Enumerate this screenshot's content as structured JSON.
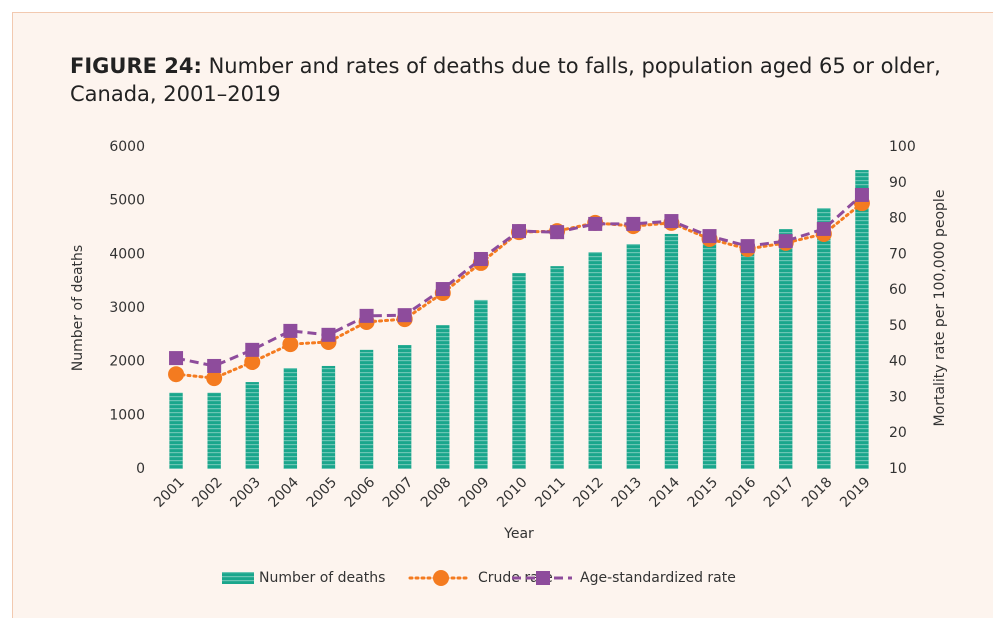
{
  "chart_data": {
    "type": "bar",
    "title_label": "FIGURE 24:",
    "title": "Number and rates of deaths due to falls, population aged 65 or older, Canada, 2001–2019",
    "x_label": "Year",
    "y_label": "Number of deaths",
    "y2_label": "Mortality rate per 100,000 people",
    "categories": [
      "2001",
      "2002",
      "2003",
      "2004",
      "2005",
      "2006",
      "2007",
      "2008",
      "2009",
      "2010",
      "2011",
      "2012",
      "2013",
      "2014",
      "2015",
      "2016",
      "2017",
      "2018",
      "2019"
    ],
    "series": [
      {
        "name": "Number of deaths",
        "type": "bar",
        "color": "#1aa68c",
        "values": [
          1420,
          1420,
          1620,
          1880,
          1920,
          2220,
          2310,
          2680,
          3150,
          3650,
          3780,
          4040,
          4190,
          4380,
          4200,
          4080,
          4470,
          4860,
          5570
        ]
      },
      {
        "name": "Crude rate",
        "type": "line",
        "axis": "y2",
        "color": "#f47b20",
        "marker": "circle",
        "dash": "dotted",
        "values": [
          36.5,
          35.4,
          39.9,
          44.9,
          45.5,
          51.1,
          51.9,
          59.2,
          67.6,
          76.2,
          76.5,
          78.8,
          77.9,
          78.8,
          74.3,
          71.5,
          73.2,
          75.7,
          84.3
        ]
      },
      {
        "name": "Age-standardized rate",
        "type": "line",
        "axis": "y2",
        "color": "#8e4c9c",
        "marker": "square",
        "dash": "dashed",
        "values": [
          41.0,
          38.8,
          43.3,
          48.6,
          47.5,
          52.8,
          53.0,
          60.3,
          68.7,
          76.5,
          76.2,
          78.5,
          78.5,
          79.3,
          75.1,
          72.3,
          73.7,
          77.1,
          86.6
        ]
      }
    ],
    "ylim": [
      0,
      6000
    ],
    "yticks": [
      0,
      1000,
      2000,
      3000,
      4000,
      5000,
      6000
    ],
    "y2lim": [
      10,
      100
    ],
    "y2ticks": [
      10,
      20,
      30,
      40,
      50,
      60,
      70,
      80,
      90,
      100
    ],
    "grid": false
  }
}
